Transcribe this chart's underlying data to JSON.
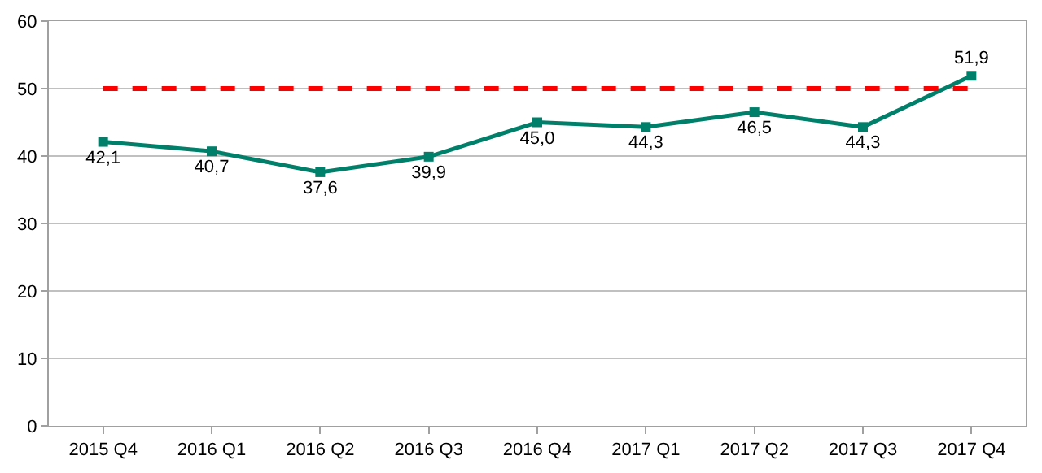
{
  "chart_data": {
    "type": "line",
    "categories": [
      "2015 Q4",
      "2016 Q1",
      "2016 Q2",
      "2016 Q3",
      "2016 Q4",
      "2017 Q1",
      "2017 Q2",
      "2017 Q3",
      "2017 Q4"
    ],
    "series": [
      {
        "color": "#00806a",
        "values": [
          42.1,
          40.7,
          37.6,
          39.9,
          45.0,
          44.3,
          46.5,
          44.3,
          51.9
        ],
        "value_labels": [
          "42,1",
          "40,7",
          "37,6",
          "39,9",
          "45,0",
          "44,3",
          "46,5",
          "44,3",
          "51,9"
        ]
      }
    ],
    "ylim": [
      0,
      60
    ],
    "yticks": [
      0,
      10,
      20,
      30,
      40,
      50,
      60
    ],
    "ref_lines": [
      {
        "axis": "y",
        "value": 50,
        "color": "#ff0000",
        "line_style": "dashed"
      }
    ],
    "grid": "y",
    "marker": "square",
    "line_style": "solid"
  }
}
